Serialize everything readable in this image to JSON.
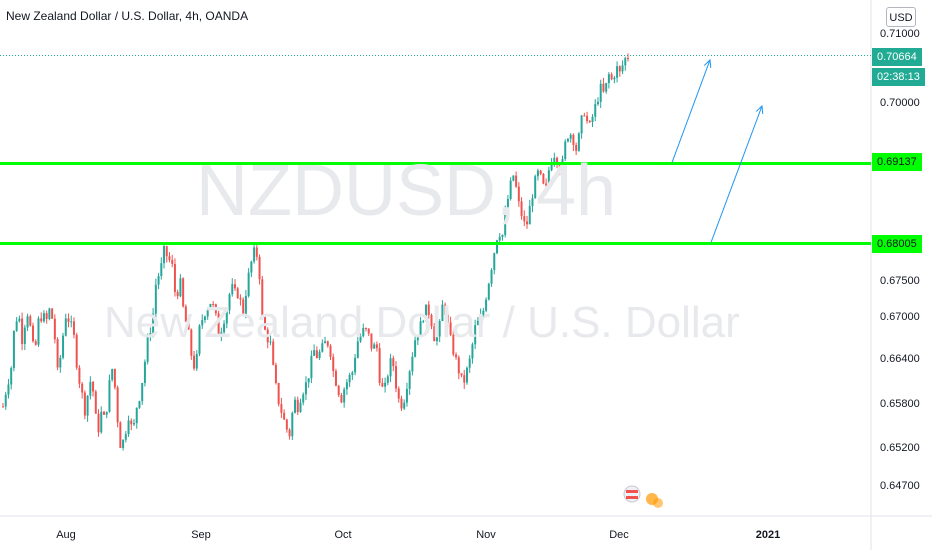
{
  "title": "New Zealand Dollar / U.S. Dollar, 4h, OANDA",
  "currency_button": "USD",
  "watermark": {
    "symbol": "NZDUSD, 4h",
    "name": "New Zealand Dollar / U.S. Dollar"
  },
  "price_tags": {
    "last_price": "0.70664",
    "countdown": "02:38:13",
    "level_upper": "0.69137",
    "level_lower": "0.68005"
  },
  "colors": {
    "up": "#26a69a",
    "down": "#ef5350",
    "levels": "#00ff00",
    "arrows": "#2196f3",
    "last_price": "#22ab94"
  },
  "chart_data": {
    "type": "candlestick",
    "ylim": [
      0.6435,
      0.7125
    ],
    "y_ticks": [
      "0.71000",
      "0.70000",
      "0.67500",
      "0.67000",
      "0.66400",
      "0.65800",
      "0.65200",
      "0.64700"
    ],
    "x_ticks": [
      {
        "label": "Aug",
        "bold": false
      },
      {
        "label": "Sep",
        "bold": false
      },
      {
        "label": "Oct",
        "bold": false
      },
      {
        "label": "Nov",
        "bold": false
      },
      {
        "label": "Dec",
        "bold": false
      },
      {
        "label": "2021",
        "bold": true
      }
    ],
    "horizontal_levels": [
      0.69137,
      0.68005
    ],
    "last_price": 0.70664,
    "trend_arrows": [
      {
        "from": 0.6915,
        "to": 0.706
      },
      {
        "from": 0.6802,
        "to": 0.6995
      }
    ],
    "price_path": [
      0.657,
      0.66,
      0.662,
      0.669,
      0.67,
      0.666,
      0.671,
      0.668,
      0.664,
      0.669,
      0.67,
      0.669,
      0.671,
      0.668,
      0.661,
      0.666,
      0.67,
      0.669,
      0.667,
      0.662,
      0.659,
      0.656,
      0.661,
      0.659,
      0.653,
      0.656,
      0.655,
      0.66,
      0.663,
      0.656,
      0.651,
      0.653,
      0.656,
      0.653,
      0.657,
      0.659,
      0.663,
      0.667,
      0.669,
      0.675,
      0.676,
      0.679,
      0.678,
      0.677,
      0.672,
      0.675,
      0.67,
      0.668,
      0.664,
      0.662,
      0.668,
      0.67,
      0.671,
      0.672,
      0.67,
      0.667,
      0.669,
      0.671,
      0.674,
      0.673,
      0.673,
      0.67,
      0.674,
      0.677,
      0.679,
      0.678,
      0.669,
      0.667,
      0.666,
      0.661,
      0.658,
      0.656,
      0.654,
      0.653,
      0.658,
      0.657,
      0.659,
      0.66,
      0.662,
      0.665,
      0.664,
      0.665,
      0.666,
      0.666,
      0.662,
      0.66,
      0.658,
      0.66,
      0.661,
      0.662,
      0.666,
      0.667,
      0.668,
      0.667,
      0.665,
      0.666,
      0.66,
      0.659,
      0.662,
      0.664,
      0.66,
      0.657,
      0.658,
      0.661,
      0.664,
      0.667,
      0.668,
      0.67,
      0.671,
      0.669,
      0.666,
      0.668,
      0.672,
      0.669,
      0.666,
      0.664,
      0.662,
      0.66,
      0.662,
      0.664,
      0.668,
      0.669,
      0.67,
      0.673,
      0.676,
      0.679,
      0.682,
      0.681,
      0.685,
      0.688,
      0.69,
      0.686,
      0.684,
      0.682,
      0.685,
      0.688,
      0.69,
      0.689,
      0.687,
      0.691,
      0.693,
      0.692,
      0.69,
      0.694,
      0.696,
      0.695,
      0.693,
      0.697,
      0.699,
      0.696,
      0.698,
      0.7,
      0.702,
      0.701,
      0.704,
      0.703,
      0.705,
      0.704,
      0.706,
      0.7066
    ]
  }
}
